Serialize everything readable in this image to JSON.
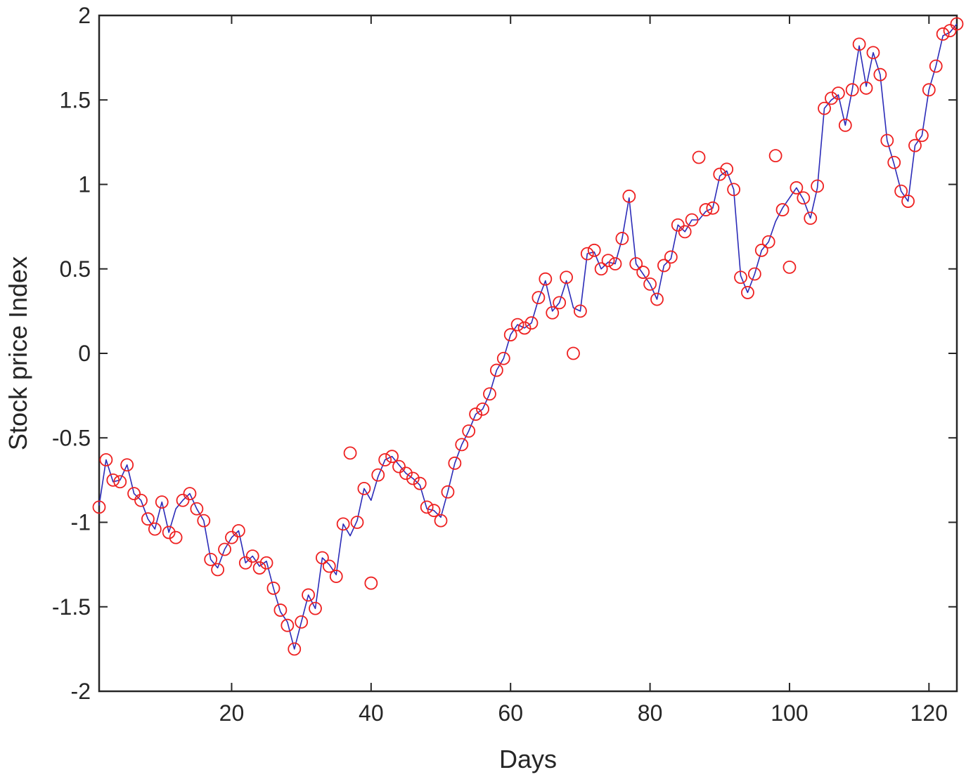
{
  "chart_data": {
    "type": "line",
    "title": "",
    "xlabel": "Days",
    "ylabel": "Stock price Index",
    "xlim": [
      1,
      124
    ],
    "ylim": [
      -2,
      2
    ],
    "xticks": [
      20,
      40,
      60,
      80,
      100,
      120
    ],
    "yticks": [
      -2,
      -1.5,
      -1,
      -0.5,
      0,
      0.5,
      1,
      1.5,
      2
    ],
    "xtick_labels": [
      "20",
      "40",
      "60",
      "80",
      "100",
      "120"
    ],
    "ytick_labels": [
      "-2",
      "-1.5",
      "-1",
      "-0.5",
      "0",
      "0.5",
      "1",
      "1.5",
      "2"
    ],
    "grid": false,
    "legend": "none",
    "colors": {
      "line": "#2b2bb8",
      "markers": "#ee2020",
      "axis": "#262626"
    },
    "x": [
      1,
      2,
      3,
      4,
      5,
      6,
      7,
      8,
      9,
      10,
      11,
      12,
      13,
      14,
      15,
      16,
      17,
      18,
      19,
      20,
      21,
      22,
      23,
      24,
      25,
      26,
      27,
      28,
      29,
      30,
      31,
      32,
      33,
      34,
      35,
      36,
      37,
      38,
      39,
      40,
      41,
      42,
      43,
      44,
      45,
      46,
      47,
      48,
      49,
      50,
      51,
      52,
      53,
      54,
      55,
      56,
      57,
      58,
      59,
      60,
      61,
      62,
      63,
      64,
      65,
      66,
      67,
      68,
      69,
      70,
      71,
      72,
      73,
      74,
      75,
      76,
      77,
      78,
      79,
      80,
      81,
      82,
      83,
      84,
      85,
      86,
      87,
      88,
      89,
      90,
      91,
      92,
      93,
      94,
      95,
      96,
      97,
      98,
      99,
      100,
      101,
      102,
      103,
      104,
      105,
      106,
      107,
      108,
      109,
      110,
      111,
      112,
      113,
      114,
      115,
      116,
      117,
      118,
      119,
      120,
      121,
      122,
      123,
      124
    ],
    "series": [
      {
        "style": "line",
        "values": [
          -0.9,
          -0.63,
          -0.76,
          -0.75,
          -0.66,
          -0.83,
          -0.87,
          -0.98,
          -1.04,
          -0.88,
          -1.06,
          -0.92,
          -0.87,
          -0.83,
          -0.92,
          -0.99,
          -1.22,
          -1.27,
          -1.16,
          -1.09,
          -1.05,
          -1.24,
          -1.2,
          -1.26,
          -1.23,
          -1.39,
          -1.53,
          -1.59,
          -1.75,
          -1.59,
          -1.43,
          -1.51,
          -1.21,
          -1.25,
          -1.31,
          -1.01,
          -1.08,
          -0.99,
          -0.8,
          -0.87,
          -0.73,
          -0.63,
          -0.61,
          -0.66,
          -0.71,
          -0.74,
          -0.78,
          -0.92,
          -0.93,
          -0.97,
          -0.82,
          -0.65,
          -0.54,
          -0.46,
          -0.36,
          -0.33,
          -0.24,
          -0.1,
          -0.03,
          0.11,
          0.17,
          0.15,
          0.18,
          0.32,
          0.43,
          0.25,
          0.3,
          0.43,
          0.27,
          0.25,
          0.59,
          0.6,
          0.5,
          0.54,
          0.53,
          0.68,
          0.92,
          0.53,
          0.47,
          0.41,
          0.32,
          0.52,
          0.56,
          0.76,
          0.72,
          0.79,
          0.79,
          0.84,
          0.86,
          1.05,
          1.08,
          0.97,
          0.46,
          0.36,
          0.47,
          0.61,
          0.66,
          0.78,
          0.86,
          0.92,
          0.98,
          0.91,
          0.8,
          0.98,
          1.45,
          1.5,
          1.53,
          1.35,
          1.56,
          1.82,
          1.58,
          1.78,
          1.65,
          1.26,
          1.12,
          0.96,
          0.9,
          1.23,
          1.29,
          1.56,
          1.7,
          1.88,
          1.9,
          1.95
        ]
      },
      {
        "style": "markers",
        "values": [
          -0.91,
          -0.63,
          -0.75,
          -0.76,
          -0.66,
          -0.83,
          -0.87,
          -0.98,
          -1.04,
          -0.88,
          -1.06,
          -1.09,
          -0.87,
          -0.83,
          -0.92,
          -0.99,
          -1.22,
          -1.28,
          -1.16,
          -1.09,
          -1.05,
          -1.24,
          -1.2,
          -1.27,
          -1.24,
          -1.39,
          -1.52,
          -1.61,
          -1.75,
          -1.59,
          -1.43,
          -1.51,
          -1.21,
          -1.26,
          -1.32,
          -1.01,
          -0.59,
          -1.0,
          -0.8,
          -1.36,
          -0.72,
          -0.63,
          -0.61,
          -0.67,
          -0.71,
          -0.74,
          -0.77,
          -0.91,
          -0.93,
          -0.99,
          -0.82,
          -0.65,
          -0.54,
          -0.46,
          -0.36,
          -0.33,
          -0.24,
          -0.1,
          -0.03,
          0.11,
          0.17,
          0.15,
          0.18,
          0.33,
          0.44,
          0.24,
          0.3,
          0.45,
          0.0,
          0.25,
          0.59,
          0.61,
          0.5,
          0.55,
          0.53,
          0.68,
          0.93,
          0.53,
          0.48,
          0.41,
          0.32,
          0.52,
          0.57,
          0.76,
          0.72,
          0.79,
          1.16,
          0.85,
          0.86,
          1.06,
          1.09,
          0.97,
          0.45,
          0.36,
          0.47,
          0.61,
          0.66,
          1.17,
          0.85,
          0.51,
          0.98,
          0.92,
          0.8,
          0.99,
          1.45,
          1.51,
          1.54,
          1.35,
          1.56,
          1.83,
          1.57,
          1.78,
          1.65,
          1.26,
          1.13,
          0.96,
          0.9,
          1.23,
          1.29,
          1.56,
          1.7,
          1.89,
          1.91,
          1.95
        ]
      }
    ]
  }
}
